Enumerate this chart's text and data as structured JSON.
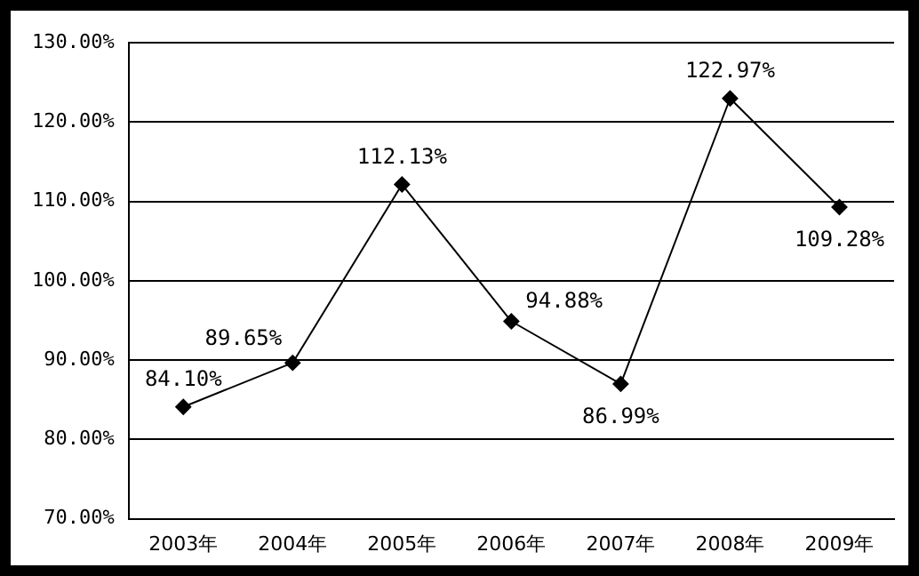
{
  "chart_data": {
    "type": "line",
    "categories": [
      "2003年",
      "2004年",
      "2005年",
      "2006年",
      "2007年",
      "2008年",
      "2009年"
    ],
    "series": [
      {
        "color": "#000000",
        "values": [
          84.1,
          89.65,
          112.13,
          94.88,
          86.99,
          122.97,
          109.28
        ],
        "value_labels": [
          "84.10%",
          "89.65%",
          "112.13%",
          "94.88%",
          "86.99%",
          "122.97%",
          "109.28%"
        ]
      }
    ],
    "ylim": [
      70,
      130
    ],
    "yticks": [
      {
        "value": 70,
        "label": "70.00%"
      },
      {
        "value": 80,
        "label": "80.00%"
      },
      {
        "value": 90,
        "label": "90.00%"
      },
      {
        "value": 100,
        "label": "100.00%"
      },
      {
        "value": 110,
        "label": "110.00%"
      },
      {
        "value": 120,
        "label": "120.00%"
      },
      {
        "value": 130,
        "label": "130.00%"
      }
    ],
    "grid": "y",
    "legend": false,
    "marker": "diamond",
    "line_style": "solid"
  }
}
